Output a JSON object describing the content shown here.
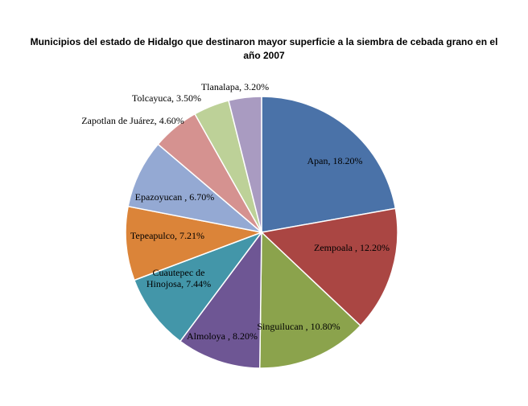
{
  "chart_data": {
    "type": "pie",
    "title_line1": "Municipios  del estado de Hidalgo  que destinaron mayor superficie  a la siembra de cebada grano en el",
    "title_line2": "año 2007",
    "slices": [
      {
        "name": "Apan",
        "value": 18.2,
        "label": "Apan, 18.20%",
        "color": "#4A72A8"
      },
      {
        "name": "Zempoala",
        "value": 12.2,
        "label": "Zempoala , 12.20%",
        "color": "#AA4643"
      },
      {
        "name": "Singuilucan",
        "value": 10.8,
        "label": "Singuilucan , 10.80%",
        "color": "#8BA34C"
      },
      {
        "name": "Almoloya",
        "value": 8.2,
        "label": "Almoloya , 8.20%",
        "color": "#6E5694"
      },
      {
        "name": "Cuautepec de Hinojosa",
        "value": 7.44,
        "label_lines": [
          "Cuautepec de",
          "Hinojosa, 7.44%"
        ],
        "color": "#4396A9"
      },
      {
        "name": "Tepeapulco",
        "value": 7.21,
        "label": "Tepeapulco, 7.21%",
        "color": "#DB8439"
      },
      {
        "name": "Epazoyucan",
        "value": 6.7,
        "label": "Epazoyucan , 6.70%",
        "color": "#94A9D3"
      },
      {
        "name": "Zapotlan de Juárez",
        "value": 4.6,
        "label": "Zapotlan de Juárez, 4.60%",
        "color": "#D59290"
      },
      {
        "name": "Tolcayuca",
        "value": 3.5,
        "label": "Tolcayuca, 3.50%",
        "color": "#BDD198"
      },
      {
        "name": "Tlanalapa",
        "value": 3.2,
        "label": "Tlanalapa, 3.20%",
        "color": "#A99BC1"
      }
    ]
  }
}
